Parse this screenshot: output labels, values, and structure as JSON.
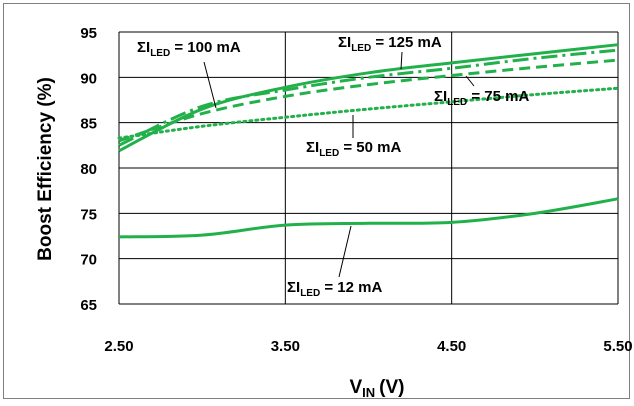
{
  "chart_data": {
    "type": "line",
    "title": "",
    "xlabel": {
      "main": "V",
      "sub": "IN",
      "unit": "(V)"
    },
    "ylabel": "Boost Efficiency (%)",
    "xlim": [
      2.5,
      5.5
    ],
    "ylim": [
      65,
      95
    ],
    "x_ticks": [
      "2.50",
      "3.50",
      "4.50",
      "5.50"
    ],
    "y_ticks": [
      "65",
      "70",
      "75",
      "80",
      "85",
      "90",
      "95"
    ],
    "grid": true,
    "line_color": "#22b04b",
    "series": [
      {
        "name": "ΣILED = 12 mA",
        "style": "solid",
        "points": [
          [
            2.5,
            72.4
          ],
          [
            3.0,
            72.6
          ],
          [
            3.5,
            73.7
          ],
          [
            4.0,
            73.9
          ],
          [
            4.5,
            74.0
          ],
          [
            5.0,
            75.0
          ],
          [
            5.5,
            76.6
          ]
        ]
      },
      {
        "name": "ΣILED = 50 mA",
        "style": "dotted",
        "points": [
          [
            2.5,
            83.3
          ],
          [
            3.0,
            84.6
          ],
          [
            3.5,
            85.6
          ],
          [
            4.0,
            86.5
          ],
          [
            4.5,
            87.3
          ],
          [
            5.0,
            88.1
          ],
          [
            5.5,
            88.8
          ]
        ]
      },
      {
        "name": "ΣILED = 75 mA",
        "style": "dashed",
        "points": [
          [
            2.5,
            83.0
          ],
          [
            3.0,
            86.0
          ],
          [
            3.5,
            87.9
          ],
          [
            4.0,
            89.2
          ],
          [
            4.5,
            90.2
          ],
          [
            5.0,
            91.1
          ],
          [
            5.5,
            91.9
          ]
        ]
      },
      {
        "name": "ΣILED = 100 mA",
        "style": "dash-dot",
        "points": [
          [
            2.5,
            82.5
          ],
          [
            3.0,
            86.8
          ],
          [
            3.5,
            88.6
          ],
          [
            4.0,
            90.0
          ],
          [
            4.5,
            91.0
          ],
          [
            5.0,
            92.1
          ],
          [
            5.5,
            93.0
          ]
        ]
      },
      {
        "name": "ΣILED = 125 mA",
        "style": "solid",
        "points": [
          [
            2.5,
            81.9
          ],
          [
            3.0,
            86.5
          ],
          [
            3.5,
            88.9
          ],
          [
            4.0,
            90.5
          ],
          [
            4.5,
            91.6
          ],
          [
            5.0,
            92.6
          ],
          [
            5.5,
            93.6
          ]
        ]
      }
    ],
    "annotations": [
      {
        "sigma": "Σ",
        "main": "I",
        "sub": "LED",
        "rest": " = 100 mA"
      },
      {
        "sigma": "Σ",
        "main": "I",
        "sub": "LED",
        "rest": " = 125 mA"
      },
      {
        "sigma": "Σ",
        "main": "I",
        "sub": "LED",
        "rest": " = 75 mA"
      },
      {
        "sigma": "Σ",
        "main": "I",
        "sub": "LED",
        "rest": " = 50 mA"
      },
      {
        "sigma": "Σ",
        "main": "I",
        "sub": "LED",
        "rest": " = 12 mA"
      }
    ]
  }
}
